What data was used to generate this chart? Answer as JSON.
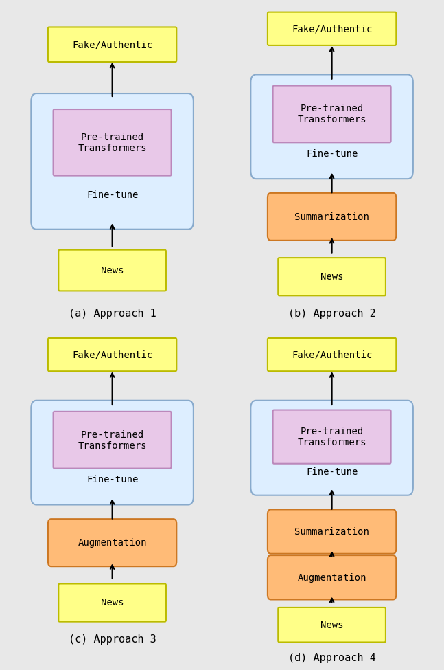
{
  "background_color": "#e8e8e8",
  "yellow_box": {
    "facecolor": "#ffff88",
    "edgecolor": "#bbbb00",
    "linewidth": 1.5
  },
  "blue_box": {
    "facecolor": "#ddeeff",
    "edgecolor": "#88aacc",
    "linewidth": 1.5
  },
  "purple_box": {
    "facecolor": "#e8c8e8",
    "edgecolor": "#bb88bb",
    "linewidth": 1.5
  },
  "orange_box": {
    "facecolor": "#ffbb77",
    "edgecolor": "#cc7722",
    "linewidth": 1.5
  },
  "captions": [
    "(a) Approach 1",
    "(b) Approach 2",
    "(c) Approach 3",
    "(d) Approach 4"
  ],
  "font_size_label": 10,
  "font_size_caption": 11,
  "font_family": "monospace"
}
